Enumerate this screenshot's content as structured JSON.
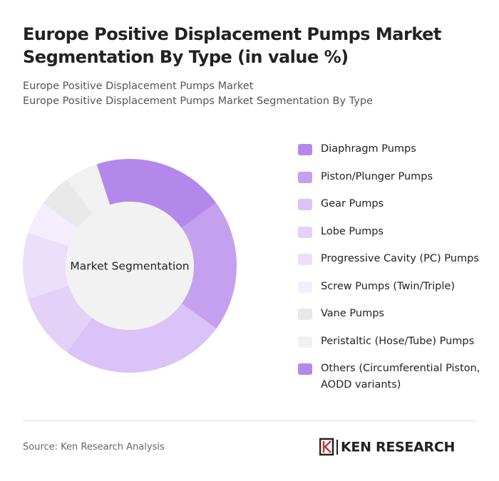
{
  "chart_data": {
    "type": "donut",
    "title": "Europe Positive Displacement Pumps Market Segmentation By Type (in value %)",
    "subtitle": [
      "Europe Positive Displacement Pumps Market",
      "Europe Positive Displacement Pumps Market Segmentation By Type"
    ],
    "center_label": "Market Segmentation",
    "categories": [
      "Diaphragm Pumps",
      "Piston/Plunger Pumps",
      "Gear Pumps",
      "Lobe Pumps",
      "Progressive Cavity (PC) Pumps",
      "Screw Pumps (Twin/Triple)",
      "Vane Pumps",
      "Peristaltic (Hose/Tube) Pumps",
      "Others (Circumferential Piston, AODD variants)"
    ],
    "values": [
      15,
      20,
      25,
      10,
      10,
      5,
      5,
      5,
      5
    ],
    "colors": [
      "#b488ea",
      "#c4a0ee",
      "#dac3f6",
      "#e3d1f8",
      "#ebdffb",
      "#f3edfd",
      "#e8e8e8",
      "#f1f1f1",
      "#b488ea"
    ]
  },
  "footer": {
    "source": "Source: Ken Research Analysis",
    "logo": "KEN RESEARCH"
  }
}
